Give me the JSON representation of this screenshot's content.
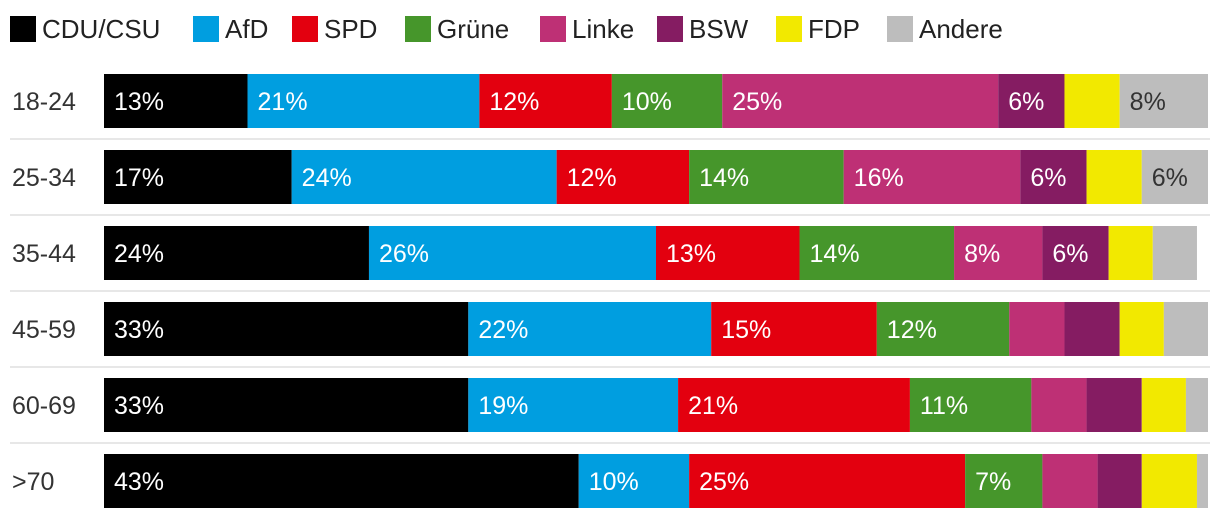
{
  "chart_data": {
    "type": "bar",
    "orientation": "horizontal",
    "stacked": true,
    "title": "",
    "xlabel": "",
    "ylabel": "",
    "xlim": [
      0,
      100
    ],
    "legend_position": "top",
    "categories": [
      "18-24",
      "25-34",
      "35-44",
      "45-59",
      "60-69",
      ">70"
    ],
    "series": [
      {
        "name": "CDU/CSU",
        "color": "#000000",
        "values": [
          13,
          17,
          24,
          33,
          33,
          43
        ],
        "labels": [
          "13%",
          "17%",
          "24%",
          "33%",
          "33%",
          "43%"
        ]
      },
      {
        "name": "AfD",
        "color": "#009ee0",
        "values": [
          21,
          24,
          26,
          22,
          19,
          10
        ],
        "labels": [
          "21%",
          "24%",
          "26%",
          "22%",
          "19%",
          "10%"
        ]
      },
      {
        "name": "SPD",
        "color": "#e3000f",
        "values": [
          12,
          12,
          13,
          15,
          21,
          25
        ],
        "labels": [
          "12%",
          "12%",
          "13%",
          "15%",
          "21%",
          "25%"
        ]
      },
      {
        "name": "Grüne",
        "color": "#46962b",
        "values": [
          10,
          14,
          14,
          12,
          11,
          7
        ],
        "labels": [
          "10%",
          "14%",
          "14%",
          "12%",
          "11%",
          "7%"
        ]
      },
      {
        "name": "Linke",
        "color": "#be3075",
        "values": [
          25,
          16,
          8,
          5,
          5,
          5
        ],
        "labels": [
          "25%",
          "16%",
          "8%",
          "",
          "",
          ""
        ]
      },
      {
        "name": "BSW",
        "color": "#851c62",
        "values": [
          6,
          6,
          6,
          5,
          5,
          4
        ],
        "labels": [
          "6%",
          "6%",
          "6%",
          "",
          "",
          ""
        ]
      },
      {
        "name": "FDP",
        "color": "#f2e900",
        "values": [
          5,
          5,
          4,
          4,
          4,
          5
        ],
        "labels": [
          "",
          "",
          "",
          "",
          "",
          ""
        ]
      },
      {
        "name": "Andere",
        "color": "#bdbdbd",
        "values": [
          8,
          6,
          4,
          4,
          2,
          1
        ],
        "labels": [
          "8%",
          "6%",
          "",
          "",
          "",
          ""
        ]
      }
    ]
  }
}
